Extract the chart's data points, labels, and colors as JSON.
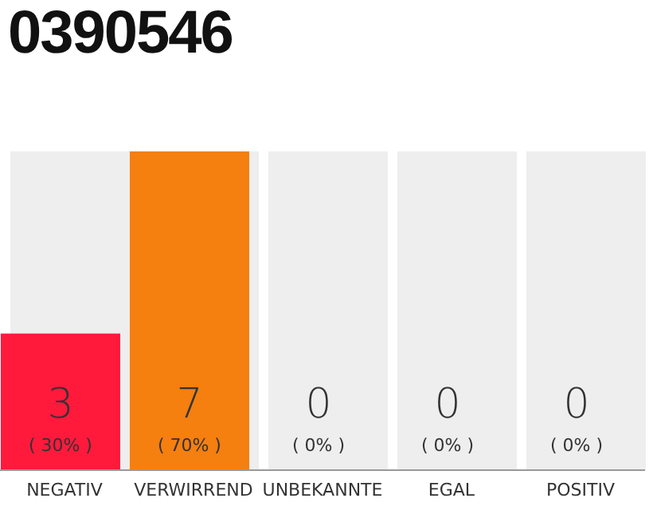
{
  "chart_data": {
    "type": "bar",
    "title": "0390546",
    "categories": [
      "NEGATIV",
      "VERWIRREND",
      "UNBEKANNTE",
      "EGAL",
      "POSITIV"
    ],
    "series": [
      {
        "values": [
          7,
          7,
          7,
          7,
          7
        ],
        "color": "#eeeeee"
      },
      {
        "values": [
          3,
          7,
          0,
          0,
          0
        ],
        "colors": [
          "#ff1a3c",
          "#f57f0f",
          "#ff1a3c",
          "#ff1a3c",
          "#ff1a3c"
        ],
        "value_labels": [
          "3 ( 30% )",
          "7 ( 70% )",
          "0 ( 0% )",
          "0 ( 0% )",
          "0 ( 0% )"
        ]
      }
    ],
    "ylim": [
      0,
      7
    ]
  }
}
